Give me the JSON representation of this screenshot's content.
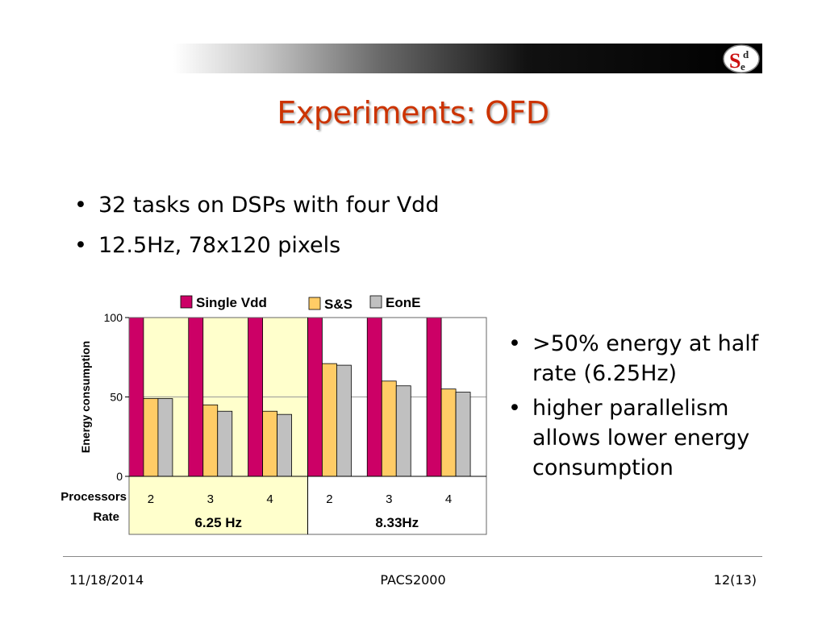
{
  "slide": {
    "title": "Experiments: OFD",
    "bullets_top": [
      "32 tasks on DSPs with four Vdd",
      "12.5Hz, 78x120 pixels"
    ],
    "bullets_side": [
      ">50% energy at half rate (6.25Hz)",
      "higher parallelism allows lower energy consumption"
    ],
    "footer": {
      "date": "11/18/2014",
      "center": "PACS2000",
      "page": "12(13)"
    },
    "logo": {
      "letters": [
        "S",
        "d",
        "e"
      ],
      "colors": {
        "red": "#cc1111",
        "dark": "#222222"
      }
    }
  },
  "chart_data": {
    "type": "bar",
    "ylabel": "Energy consumption",
    "ylim": [
      0,
      100
    ],
    "yticks": [
      0,
      50,
      100
    ],
    "grid": true,
    "legend_placement": "top",
    "row_labels": {
      "processors": "Processors",
      "rate": "Rate"
    },
    "groups": [
      {
        "rate": "6.25 Hz",
        "processors": [
          "2",
          "3",
          "4"
        ],
        "background": "#ffffcc"
      },
      {
        "rate": "8.33Hz",
        "processors": [
          "2",
          "3",
          "4"
        ],
        "background": "#ffffff"
      }
    ],
    "series": [
      {
        "name": "Single Vdd",
        "color": "#cc0066",
        "values": [
          100,
          100,
          100,
          100,
          100,
          100
        ]
      },
      {
        "name": "S&S",
        "color": "#ffcc66",
        "values": [
          49,
          45,
          41,
          71,
          60,
          55
        ]
      },
      {
        "name": "EonE",
        "color": "#c0c0c0",
        "values": [
          49,
          41,
          39,
          70,
          57,
          53
        ]
      }
    ]
  }
}
